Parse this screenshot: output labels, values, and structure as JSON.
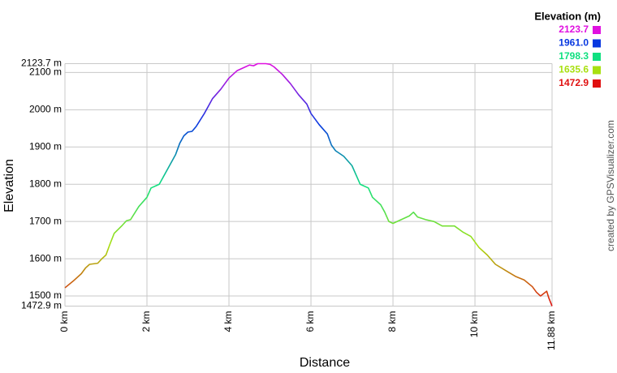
{
  "chart_data": {
    "type": "line",
    "y_label": "Elevation",
    "x_label": "Distance",
    "credit": "created by GPSVisualizer.com",
    "legend": {
      "title": "Elevation (m)",
      "values": [
        2123.7,
        1961,
        1798.3,
        1635.6,
        1472.9
      ],
      "value_labels": [
        "2123.7",
        "1961.0",
        "1798.3",
        "1635.6",
        "1472.9"
      ],
      "colors": [
        "#e010e0",
        "#0838e0",
        "#10e080",
        "#a8e010",
        "#e01010"
      ]
    },
    "xlim": [
      0,
      11.88
    ],
    "ylim": [
      1472.9,
      2123.7
    ],
    "xticks": [
      {
        "value": 0,
        "label": "0 km"
      },
      {
        "value": 2,
        "label": "2 km"
      },
      {
        "value": 4,
        "label": "4 km"
      },
      {
        "value": 6,
        "label": "6 km"
      },
      {
        "value": 8,
        "label": "8 km"
      },
      {
        "value": 10,
        "label": "10 km"
      },
      {
        "value": 11.88,
        "label": "11.88 km"
      }
    ],
    "yticks": [
      {
        "value": 1472.9,
        "label": "1472.9 m"
      },
      {
        "value": 1500,
        "label": "1500 m"
      },
      {
        "value": 1600,
        "label": "1600 m"
      },
      {
        "value": 1700,
        "label": "1700 m"
      },
      {
        "value": 1800,
        "label": "1800 m"
      },
      {
        "value": 1900,
        "label": "1900 m"
      },
      {
        "value": 2000,
        "label": "2000 m"
      },
      {
        "value": 2100,
        "label": "2100 m"
      },
      {
        "value": 2123.7,
        "label": "2123.7 m"
      }
    ],
    "grid": true,
    "x": [
      0,
      0.2,
      0.4,
      0.5,
      0.6,
      0.8,
      0.9,
      1.0,
      1.1,
      1.2,
      1.4,
      1.5,
      1.6,
      1.8,
      2.0,
      2.1,
      2.3,
      2.5,
      2.7,
      2.8,
      2.9,
      3.0,
      3.1,
      3.2,
      3.4,
      3.6,
      3.8,
      4.0,
      4.2,
      4.4,
      4.5,
      4.6,
      4.7,
      4.9,
      5.0,
      5.1,
      5.3,
      5.5,
      5.7,
      5.9,
      6.0,
      6.2,
      6.4,
      6.5,
      6.6,
      6.8,
      7.0,
      7.1,
      7.2,
      7.4,
      7.5,
      7.7,
      7.8,
      7.9,
      8.0,
      8.2,
      8.4,
      8.5,
      8.6,
      8.8,
      9.0,
      9.2,
      9.5,
      9.7,
      9.9,
      10.1,
      10.3,
      10.5,
      10.8,
      11.0,
      11.2,
      11.4,
      11.5,
      11.6,
      11.75,
      11.8,
      11.88
    ],
    "values": [
      1522,
      1540,
      1560,
      1575,
      1585,
      1588,
      1600,
      1610,
      1640,
      1668,
      1690,
      1702,
      1705,
      1740,
      1765,
      1790,
      1800,
      1840,
      1880,
      1910,
      1930,
      1940,
      1942,
      1955,
      1990,
      2030,
      2055,
      2085,
      2105,
      2115,
      2120,
      2118,
      2123.7,
      2123.7,
      2122,
      2115,
      2095,
      2070,
      2040,
      2015,
      1990,
      1960,
      1935,
      1905,
      1890,
      1875,
      1850,
      1825,
      1800,
      1790,
      1765,
      1745,
      1725,
      1700,
      1695,
      1705,
      1715,
      1725,
      1712,
      1705,
      1700,
      1688,
      1688,
      1672,
      1660,
      1630,
      1610,
      1585,
      1565,
      1552,
      1543,
      1525,
      1510,
      1500,
      1513,
      1495,
      1472.9
    ]
  }
}
